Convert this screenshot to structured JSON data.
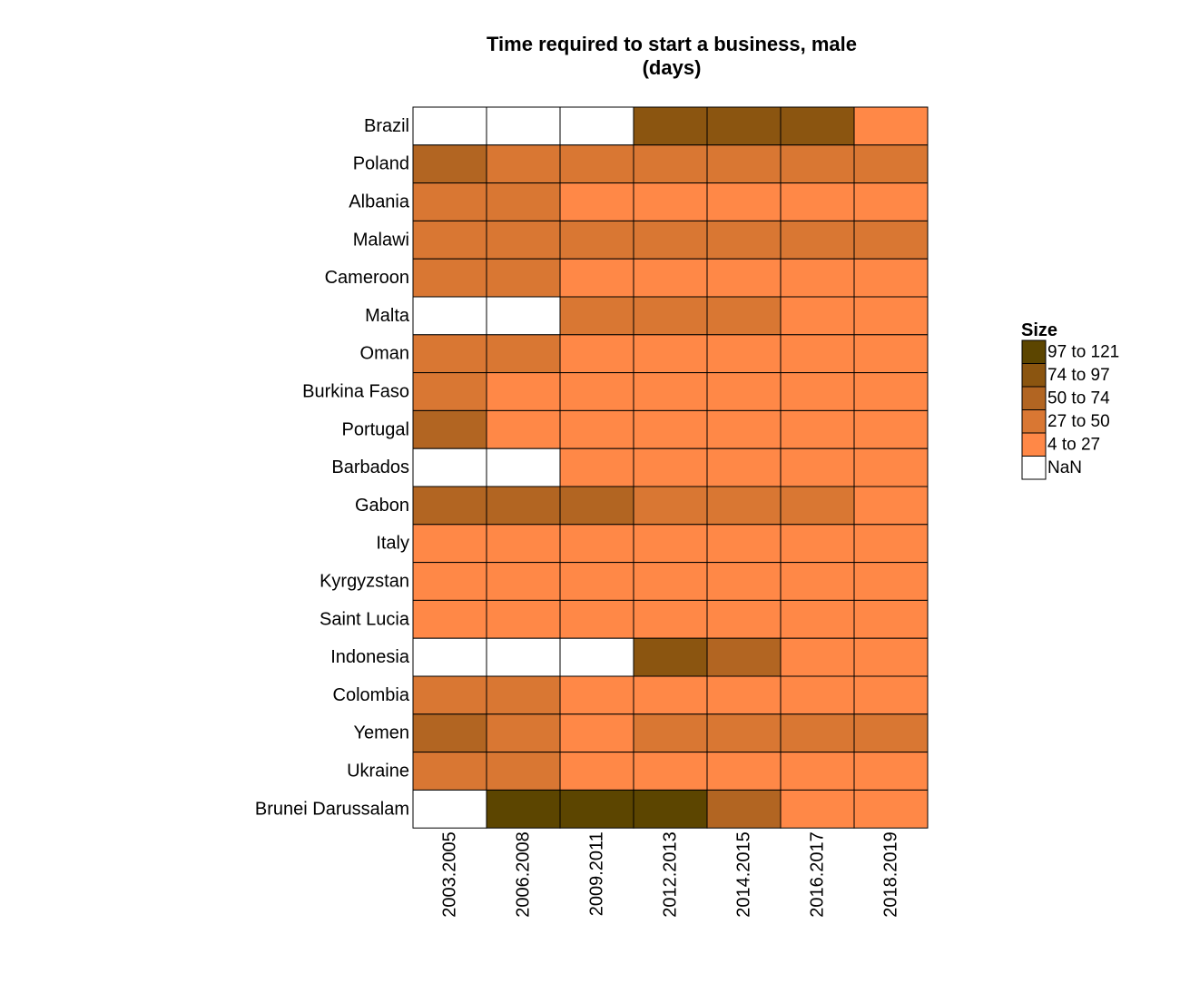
{
  "chart_data": {
    "type": "heatmap",
    "title_lines": [
      "Time required to start a business, male",
      "(days)"
    ],
    "columns": [
      "2003.2005",
      "2006.2008",
      "2009.2011",
      "2012.2013",
      "2014.2015",
      "2016.2017",
      "2018.2019"
    ],
    "rows": [
      "Brazil",
      "Poland",
      "Albania",
      "Malawi",
      "Cameroon",
      "Malta",
      "Oman",
      "Burkina Faso",
      "Portugal",
      "Barbados",
      "Gabon",
      "Italy",
      "Kyrgyzstan",
      "Saint Lucia",
      "Indonesia",
      "Colombia",
      "Yemen",
      "Ukraine",
      "Brunei Darussalam"
    ],
    "cells": [
      [
        "NaN",
        "NaN",
        "NaN",
        "74 to 97",
        "74 to 97",
        "74 to 97",
        "4 to 27"
      ],
      [
        "50 to 74",
        "27 to 50",
        "27 to 50",
        "27 to 50",
        "27 to 50",
        "27 to 50",
        "27 to 50"
      ],
      [
        "27 to 50",
        "27 to 50",
        "4 to 27",
        "4 to 27",
        "4 to 27",
        "4 to 27",
        "4 to 27"
      ],
      [
        "27 to 50",
        "27 to 50",
        "27 to 50",
        "27 to 50",
        "27 to 50",
        "27 to 50",
        "27 to 50"
      ],
      [
        "27 to 50",
        "27 to 50",
        "4 to 27",
        "4 to 27",
        "4 to 27",
        "4 to 27",
        "4 to 27"
      ],
      [
        "NaN",
        "NaN",
        "27 to 50",
        "27 to 50",
        "27 to 50",
        "4 to 27",
        "4 to 27"
      ],
      [
        "27 to 50",
        "27 to 50",
        "4 to 27",
        "4 to 27",
        "4 to 27",
        "4 to 27",
        "4 to 27"
      ],
      [
        "27 to 50",
        "4 to 27",
        "4 to 27",
        "4 to 27",
        "4 to 27",
        "4 to 27",
        "4 to 27"
      ],
      [
        "50 to 74",
        "4 to 27",
        "4 to 27",
        "4 to 27",
        "4 to 27",
        "4 to 27",
        "4 to 27"
      ],
      [
        "NaN",
        "NaN",
        "4 to 27",
        "4 to 27",
        "4 to 27",
        "4 to 27",
        "4 to 27"
      ],
      [
        "50 to 74",
        "50 to 74",
        "50 to 74",
        "27 to 50",
        "27 to 50",
        "27 to 50",
        "4 to 27"
      ],
      [
        "4 to 27",
        "4 to 27",
        "4 to 27",
        "4 to 27",
        "4 to 27",
        "4 to 27",
        "4 to 27"
      ],
      [
        "4 to 27",
        "4 to 27",
        "4 to 27",
        "4 to 27",
        "4 to 27",
        "4 to 27",
        "4 to 27"
      ],
      [
        "4 to 27",
        "4 to 27",
        "4 to 27",
        "4 to 27",
        "4 to 27",
        "4 to 27",
        "4 to 27"
      ],
      [
        "NaN",
        "NaN",
        "NaN",
        "74 to 97",
        "50 to 74",
        "4 to 27",
        "4 to 27"
      ],
      [
        "27 to 50",
        "27 to 50",
        "4 to 27",
        "4 to 27",
        "4 to 27",
        "4 to 27",
        "4 to 27"
      ],
      [
        "50 to 74",
        "27 to 50",
        "4 to 27",
        "27 to 50",
        "27 to 50",
        "27 to 50",
        "27 to 50"
      ],
      [
        "27 to 50",
        "27 to 50",
        "4 to 27",
        "4 to 27",
        "4 to 27",
        "4 to 27",
        "4 to 27"
      ],
      [
        "NaN",
        "97 to 121",
        "97 to 121",
        "97 to 121",
        "50 to 74",
        "4 to 27",
        "4 to 27"
      ]
    ],
    "legend": {
      "title": "Size",
      "placement": "right",
      "items": [
        {
          "label": "97 to 121",
          "color": "#5c4500"
        },
        {
          "label": "74 to 97",
          "color": "#8b5510"
        },
        {
          "label": "50 to 74",
          "color": "#b26522"
        },
        {
          "label": "27 to 50",
          "color": "#d97733"
        },
        {
          "label": "4 to 27",
          "color": "#ff8847"
        },
        {
          "label": "NaN",
          "color": "#ffffff"
        }
      ]
    },
    "grid": false
  }
}
